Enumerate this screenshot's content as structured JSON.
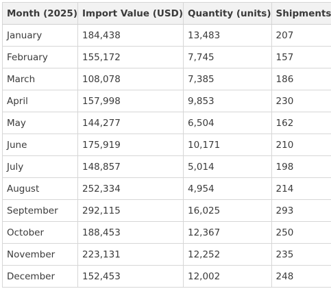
{
  "table": {
    "headers": [
      "Month (2025)",
      "Import Value (USD)",
      "Quantity (units)",
      "Shipments"
    ],
    "rows": [
      [
        "January",
        "184,438",
        "13,483",
        "207"
      ],
      [
        "February",
        "155,172",
        "7,745",
        "157"
      ],
      [
        "March",
        "108,078",
        "7,385",
        "186"
      ],
      [
        "April",
        "157,998",
        "9,853",
        "230"
      ],
      [
        "May",
        "144,277",
        "6,504",
        "162"
      ],
      [
        "June",
        "175,919",
        "10,171",
        "210"
      ],
      [
        "July",
        "148,857",
        "5,014",
        "198"
      ],
      [
        "August",
        "252,334",
        "4,954",
        "214"
      ],
      [
        "September",
        "292,115",
        "16,025",
        "293"
      ],
      [
        "October",
        "188,453",
        "12,367",
        "250"
      ],
      [
        "November",
        "223,131",
        "12,252",
        "235"
      ],
      [
        "December",
        "152,453",
        "12,002",
        "248"
      ]
    ]
  }
}
